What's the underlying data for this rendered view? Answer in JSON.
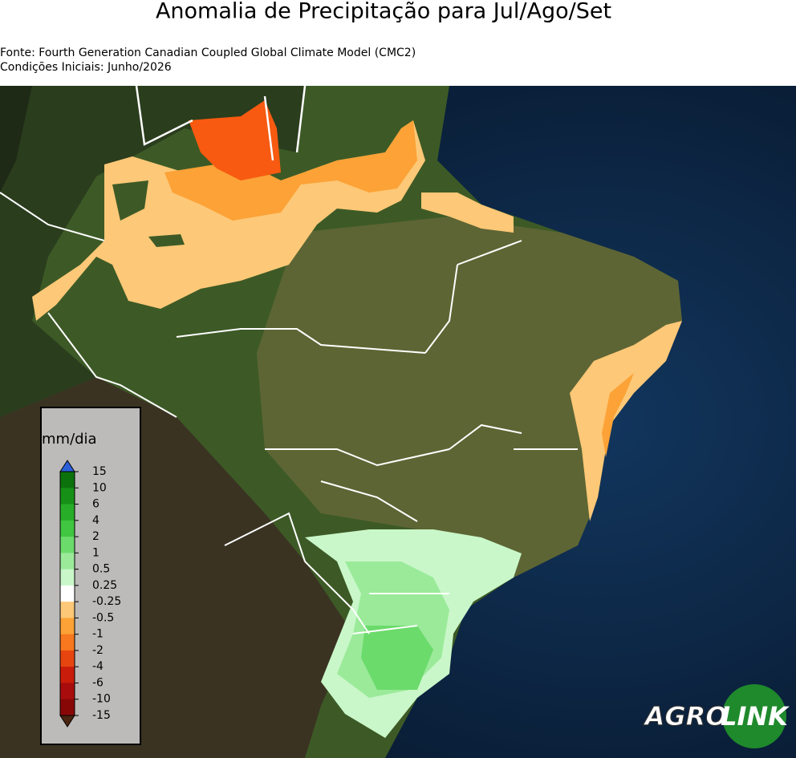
{
  "header": {
    "title": "Anomalia de Precipitação para Jul/Ago/Set",
    "source": "Fonte: Fourth Generation Canadian Coupled Global Climate Model (CMC2)",
    "initial_conditions": "Condições Iniciais: Junho/2026"
  },
  "legend": {
    "label": "mm/dia",
    "ticks": [
      15,
      10,
      6,
      4,
      2,
      1,
      0.5,
      0.25,
      -0.25,
      -0.5,
      -1,
      -2,
      -4,
      -6,
      -10,
      -15
    ],
    "colors": [
      "#0c720c",
      "#169016",
      "#27ad27",
      "#40c640",
      "#6bdb6b",
      "#9aea9a",
      "#c9f7c9",
      "#ffffff",
      "#fdc877",
      "#fca236",
      "#f7781e",
      "#e64510",
      "#c91c0a",
      "#a80c0c",
      "#870707"
    ],
    "above_color": "#2c5fd8",
    "below_color": "#4a2410"
  },
  "logo": {
    "left": "AGRO",
    "right": "LINK"
  }
}
